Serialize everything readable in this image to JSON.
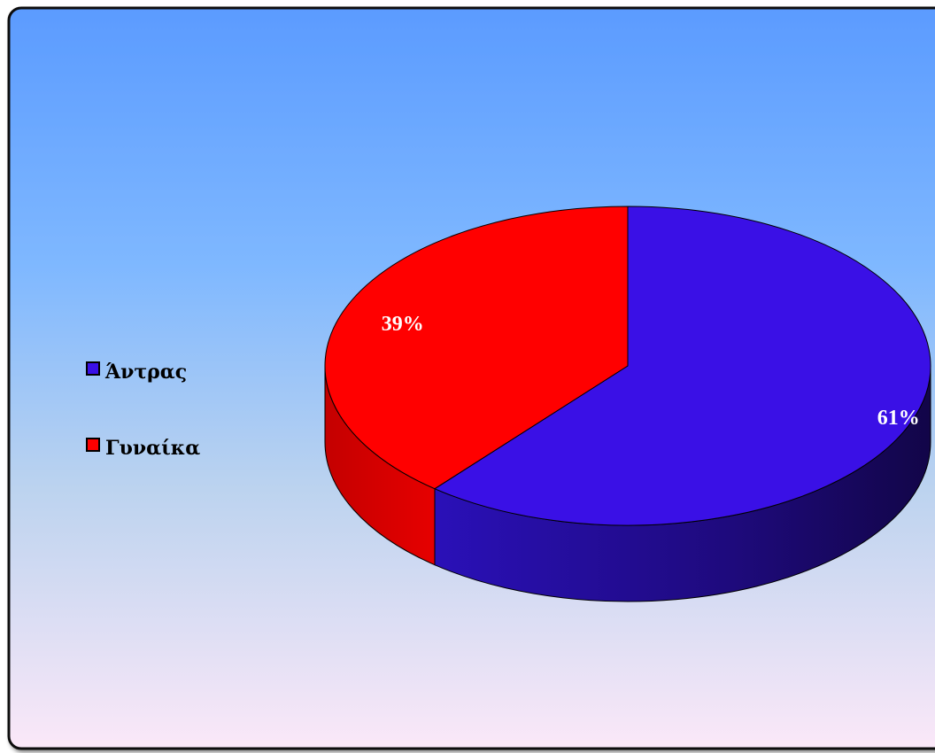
{
  "chart_data": {
    "type": "pie",
    "three_d": true,
    "categories": [
      "Άντρας",
      "Γυναίκα"
    ],
    "values": [
      61,
      39
    ],
    "data_labels": [
      "61%",
      "39%"
    ],
    "colors": [
      "#3a10e6",
      "#ff0000"
    ],
    "legend": {
      "entries": [
        "Άντρας",
        "Γυναίκα"
      ],
      "position": "left"
    },
    "title": "",
    "background": {
      "gradient_top": "#5b9bff",
      "gradient_bottom": "#fbe8f8"
    }
  }
}
